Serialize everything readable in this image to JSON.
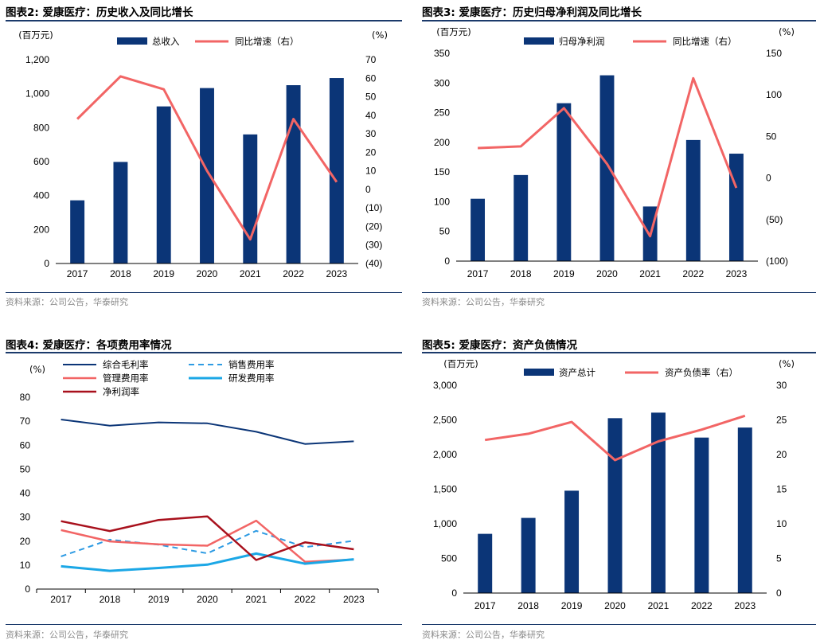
{
  "panels": [
    {
      "title": "图表2:  爱康医疗：历史收入及同比增长",
      "source": "资料来源：公司公告，华泰研究"
    },
    {
      "title": "图表3:  爱康医疗：历史归母净利润及同比增长",
      "source": "资料来源：公司公告，华泰研究"
    },
    {
      "title": "图表4:  爱康医疗：各项费用率情况",
      "source": "资料来源：公司公告，华泰研究"
    },
    {
      "title": "图表5:  爱康医疗：资产负债情况",
      "source": "资料来源：公司公告，华泰研究"
    }
  ],
  "colors": {
    "navy": "#0b3577",
    "red": "#f26565",
    "dark_red": "#a8101c",
    "blue": "#1ba7e6",
    "dashed_blue": "#2e9be3",
    "rule": "#1b3a6b"
  },
  "chart_data": [
    {
      "type": "bar+line",
      "categories": [
        "2017",
        "2018",
        "2019",
        "2020",
        "2021",
        "2022",
        "2023"
      ],
      "series": [
        {
          "name": "总收入",
          "kind": "bar",
          "axis": "left",
          "values": [
            372,
            598,
            925,
            1033,
            760,
            1050,
            1092
          ]
        },
        {
          "name": "同比增速（右）",
          "kind": "line",
          "axis": "right",
          "values": [
            38,
            61,
            54,
            10,
            -27,
            38,
            4
          ]
        }
      ],
      "y_left": {
        "label": "(百万元)",
        "min": 0,
        "max": 1200,
        "ticks": [
          0,
          200,
          400,
          600,
          800,
          1000,
          1200
        ],
        "tick_labels": [
          "0",
          "200",
          "400",
          "600",
          "800",
          "1,000",
          "1,200"
        ]
      },
      "y_right": {
        "label": "(%)",
        "min": -40,
        "max": 70,
        "ticks": [
          -40,
          -30,
          -20,
          -10,
          0,
          10,
          20,
          30,
          40,
          50,
          60,
          70
        ],
        "tick_labels": [
          "(40)",
          "(30)",
          "(20)",
          "(10)",
          "0",
          "10",
          "20",
          "30",
          "40",
          "50",
          "60",
          "70"
        ]
      },
      "legend": "top"
    },
    {
      "type": "bar+line",
      "categories": [
        "2017",
        "2018",
        "2019",
        "2020",
        "2021",
        "2022",
        "2023"
      ],
      "series": [
        {
          "name": "归母净利润",
          "kind": "bar",
          "axis": "left",
          "values": [
            105,
            145,
            266,
            313,
            92,
            204,
            181
          ]
        },
        {
          "name": "同比增速（右）",
          "kind": "line",
          "axis": "right",
          "values": [
            36,
            38,
            84,
            17,
            -70,
            120,
            -12
          ]
        }
      ],
      "y_left": {
        "label": "(百万元)",
        "min": 0,
        "max": 350,
        "ticks": [
          0,
          50,
          100,
          150,
          200,
          250,
          300,
          350
        ],
        "tick_labels": [
          "0",
          "50",
          "100",
          "150",
          "200",
          "250",
          "300",
          "350"
        ]
      },
      "y_right": {
        "label": "(%)",
        "min": -100,
        "max": 150,
        "ticks": [
          -100,
          -50,
          0,
          50,
          100,
          150
        ],
        "tick_labels": [
          "(100)",
          "(50)",
          "0",
          "50",
          "100",
          "150"
        ]
      },
      "legend": "top"
    },
    {
      "type": "line",
      "categories": [
        "2017",
        "2018",
        "2019",
        "2020",
        "2021",
        "2022",
        "2023"
      ],
      "series": [
        {
          "name": "综合毛利率",
          "values": [
            70.7,
            68.1,
            69.5,
            69.1,
            65.6,
            60.5,
            61.6
          ]
        },
        {
          "name": "销售费用率",
          "values": [
            13.6,
            20.6,
            18.5,
            14.9,
            24.3,
            17.5,
            20.1
          ]
        },
        {
          "name": "管理费用率",
          "values": [
            24.6,
            19.9,
            18.7,
            18.1,
            28.5,
            11.4,
            12.3
          ]
        },
        {
          "name": "研发费用率",
          "values": [
            9.5,
            7.6,
            8.8,
            10.2,
            14.8,
            10.6,
            12.4
          ]
        },
        {
          "name": "净利润率",
          "values": [
            28.3,
            24.2,
            28.8,
            30.3,
            12.1,
            19.5,
            16.6
          ]
        }
      ],
      "y_left": {
        "label": "(%)",
        "min": 0,
        "max": 80,
        "ticks": [
          0,
          10,
          20,
          30,
          40,
          50,
          60,
          70,
          80
        ],
        "tick_labels": [
          "0",
          "10",
          "20",
          "30",
          "40",
          "50",
          "60",
          "70",
          "80"
        ]
      },
      "legend": "top"
    },
    {
      "type": "bar+line",
      "categories": [
        "2017",
        "2018",
        "2019",
        "2020",
        "2021",
        "2022",
        "2023"
      ],
      "series": [
        {
          "name": "资产总计",
          "kind": "bar",
          "axis": "left",
          "values": [
            855,
            1085,
            1478,
            2525,
            2605,
            2245,
            2390
          ]
        },
        {
          "name": "资产负债率（右）",
          "kind": "line",
          "axis": "right",
          "values": [
            22.1,
            23.0,
            24.7,
            19.2,
            21.9,
            23.6,
            25.6
          ]
        }
      ],
      "y_left": {
        "label": "(百万元)",
        "min": 0,
        "max": 3000,
        "ticks": [
          0,
          500,
          1000,
          1500,
          2000,
          2500,
          3000
        ],
        "tick_labels": [
          "0",
          "500",
          "1,000",
          "1,500",
          "2,000",
          "2,500",
          "3,000"
        ]
      },
      "y_right": {
        "label": "(%)",
        "min": 0,
        "max": 30,
        "ticks": [
          0,
          5,
          10,
          15,
          20,
          25,
          30
        ],
        "tick_labels": [
          "0",
          "5",
          "10",
          "15",
          "20",
          "25",
          "30"
        ]
      },
      "legend": "top"
    }
  ]
}
